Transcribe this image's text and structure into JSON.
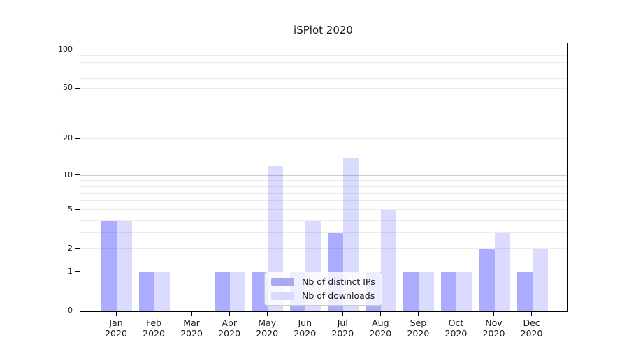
{
  "title": "iSPlot 2020",
  "chart_data": {
    "type": "bar",
    "title": "iSPlot 2020",
    "categories": [
      "Jan 2020",
      "Feb 2020",
      "Mar 2020",
      "Apr 2020",
      "May 2020",
      "Jun 2020",
      "Jul 2020",
      "Aug 2020",
      "Sep 2020",
      "Oct 2020",
      "Nov 2020",
      "Dec 2020"
    ],
    "series": [
      {
        "name": "Nb of distinct IPs",
        "color": "#a8a8f5",
        "fill": "rgba(0,0,255,0.33)",
        "values": [
          4,
          1,
          0,
          1,
          1,
          1,
          3,
          1,
          1,
          1,
          2,
          1
        ]
      },
      {
        "name": "Nb of downloads",
        "color": "#d9d9fb",
        "fill": "rgba(0,0,255,0.14)",
        "values": [
          4,
          1,
          0,
          1,
          12,
          4,
          14,
          5,
          1,
          1,
          3,
          2
        ]
      }
    ],
    "xlabel": "",
    "ylabel": "",
    "yscale": "symlog",
    "ylim": [
      0,
      100
    ],
    "y_tick_values": [
      100,
      50,
      20,
      10,
      5,
      2,
      1,
      0
    ],
    "y_tick_labels": [
      "100",
      "50",
      "20",
      "10",
      "5",
      "2",
      "1",
      "0"
    ],
    "y_major_grid": [
      1,
      10,
      100
    ],
    "y_minor_grid": [
      2,
      3,
      4,
      5,
      6,
      7,
      8,
      9,
      20,
      30,
      40,
      50,
      60,
      70,
      80,
      90
    ],
    "grid": "horizontal-only",
    "legend_position": "lower center",
    "colors": {
      "grid_major": "#cccccc",
      "grid_minor": "#ececec",
      "axis": "#000000",
      "text": "#1a1a1a",
      "background": "#ffffff"
    }
  },
  "legend": {
    "items": [
      "Nb of distinct IPs",
      "Nb of downloads"
    ]
  }
}
